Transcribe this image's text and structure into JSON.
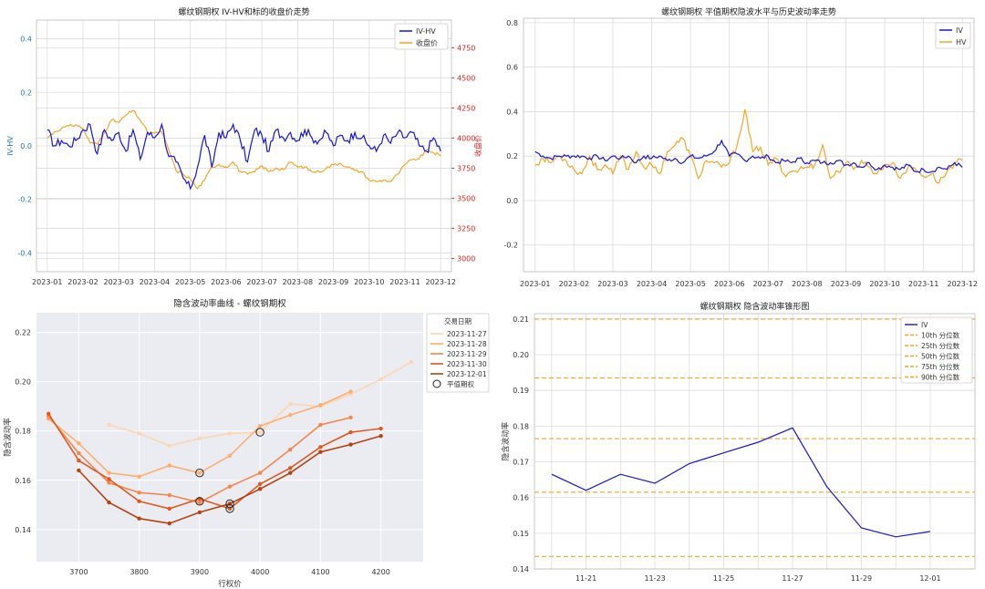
{
  "chart_data": [
    {
      "type": "line",
      "title": "螺纹钢期权 IV-HV和标的收盘价走势",
      "xlabel": "",
      "ylabel_left": "IV-HV",
      "ylabel_right": "收盘价",
      "x_ticks": [
        "2023-01",
        "2023-02",
        "2023-03",
        "2023-04",
        "2023-05",
        "2023-06",
        "2023-07",
        "2023-08",
        "2023-09",
        "2023-10",
        "2023-11",
        "2023-12"
      ],
      "x_range": [
        -0.3,
        11.3
      ],
      "ylim_left": [
        -0.47,
        0.47
      ],
      "ylim_right": [
        2890,
        4980
      ],
      "y_ticks_left": [
        "-0.4",
        "-0.2",
        "0.0",
        "0.2",
        "0.4"
      ],
      "y_ticks_right": [
        "3000",
        "3250",
        "3500",
        "3750",
        "4000",
        "4250",
        "4500",
        "4750"
      ],
      "legend": [
        "IV-HV",
        "收盘价"
      ],
      "colors": {
        "iv_hv": "#1515e0",
        "close": "#f5a623",
        "right_axis": "#e02020",
        "left_axis": "#1f77b4"
      },
      "series": [
        {
          "name": "IV-HV",
          "axis": "left",
          "x": [
            0,
            0.2,
            0.4,
            0.6,
            0.8,
            1.0,
            1.2,
            1.4,
            1.6,
            1.8,
            2.0,
            2.2,
            2.4,
            2.6,
            2.8,
            3.0,
            3.2,
            3.4,
            3.6,
            3.8,
            4.0,
            4.2,
            4.4,
            4.6,
            4.8,
            5.0,
            5.2,
            5.4,
            5.6,
            5.8,
            6.0,
            6.2,
            6.4,
            6.6,
            6.8,
            7.0,
            7.2,
            7.4,
            7.6,
            7.8,
            8.0,
            8.2,
            8.4,
            8.6,
            8.8,
            9.0,
            9.2,
            9.4,
            9.6,
            9.8,
            10.0,
            10.2,
            10.4,
            10.6,
            10.8,
            11.0
          ],
          "y": [
            0.06,
            0.0,
            0.02,
            0.0,
            0.02,
            0.06,
            0.08,
            -0.03,
            0.06,
            0.02,
            0.05,
            -0.02,
            0.06,
            -0.05,
            0.05,
            0.03,
            0.08,
            -0.04,
            -0.06,
            -0.12,
            -0.16,
            -0.08,
            0.04,
            -0.08,
            0.05,
            0.03,
            0.08,
            0.02,
            -0.06,
            0.06,
            0.04,
            -0.02,
            0.06,
            0.03,
            0.05,
            0.02,
            0.06,
            0.03,
            0.02,
            0.05,
            0.0,
            0.04,
            0.02,
            0.05,
            0.03,
            0.0,
            -0.02,
            0.04,
            0.01,
            0.05,
            0.03,
            0.05,
            0.0,
            -0.02,
            0.03,
            -0.02
          ]
        },
        {
          "name": "收盘价",
          "axis": "right",
          "x": [
            0,
            0.2,
            0.4,
            0.6,
            0.8,
            1.0,
            1.2,
            1.4,
            1.6,
            1.8,
            2.0,
            2.2,
            2.4,
            2.6,
            2.8,
            3.0,
            3.2,
            3.4,
            3.6,
            3.8,
            4.0,
            4.2,
            4.4,
            4.6,
            4.8,
            5.0,
            5.2,
            5.4,
            5.6,
            5.8,
            6.0,
            6.2,
            6.4,
            6.6,
            6.8,
            7.0,
            7.2,
            7.4,
            7.6,
            7.8,
            8.0,
            8.2,
            8.4,
            8.6,
            8.8,
            9.0,
            9.2,
            9.4,
            9.6,
            9.8,
            10.0,
            10.2,
            10.4,
            10.6,
            10.8,
            11.0
          ],
          "y": [
            4000,
            4050,
            4080,
            4100,
            4110,
            4080,
            3960,
            3950,
            4050,
            4150,
            4130,
            4190,
            4230,
            4150,
            4050,
            4040,
            4050,
            3900,
            3730,
            3700,
            3660,
            3580,
            3650,
            3760,
            3780,
            3760,
            3800,
            3720,
            3700,
            3720,
            3770,
            3720,
            3750,
            3740,
            3800,
            3760,
            3760,
            3720,
            3720,
            3750,
            3780,
            3790,
            3760,
            3730,
            3720,
            3650,
            3640,
            3650,
            3640,
            3700,
            3780,
            3820,
            3830,
            3900,
            3880,
            3850
          ]
        }
      ]
    },
    {
      "type": "line",
      "title": "螺纹钢期权 平值期权隐波水平与历史波动率走势",
      "xlabel": "",
      "ylabel": "",
      "x_ticks": [
        "2023-01",
        "2023-02",
        "2023-03",
        "2023-04",
        "2023-05",
        "2023-06",
        "2023-07",
        "2023-08",
        "2023-09",
        "2023-10",
        "2023-11",
        "2023-12"
      ],
      "x_range": [
        -0.3,
        11.3
      ],
      "ylim": [
        -0.32,
        0.82
      ],
      "y_ticks": [
        "-0.2",
        "0.0",
        "0.2",
        "0.4",
        "0.6",
        "0.8"
      ],
      "legend": [
        "IV",
        "HV"
      ],
      "colors": {
        "iv": "#1515e0",
        "hv": "#f5a623"
      },
      "series": [
        {
          "name": "IV",
          "x": [
            0,
            0.2,
            0.4,
            0.6,
            0.8,
            1.0,
            1.2,
            1.4,
            1.6,
            1.8,
            2.0,
            2.2,
            2.4,
            2.6,
            2.8,
            3.0,
            3.2,
            3.4,
            3.6,
            3.8,
            4.0,
            4.2,
            4.4,
            4.6,
            4.8,
            5.0,
            5.2,
            5.4,
            5.6,
            5.8,
            6.0,
            6.2,
            6.4,
            6.6,
            6.8,
            7.0,
            7.2,
            7.4,
            7.6,
            7.8,
            8.0,
            8.2,
            8.4,
            8.6,
            8.8,
            9.0,
            9.2,
            9.4,
            9.6,
            9.8,
            10.0,
            10.2,
            10.4,
            10.6,
            10.8,
            11.0
          ],
          "y": [
            0.22,
            0.2,
            0.19,
            0.2,
            0.2,
            0.2,
            0.2,
            0.19,
            0.2,
            0.18,
            0.2,
            0.19,
            0.2,
            0.17,
            0.2,
            0.19,
            0.2,
            0.18,
            0.19,
            0.17,
            0.2,
            0.19,
            0.2,
            0.22,
            0.27,
            0.2,
            0.21,
            0.18,
            0.2,
            0.19,
            0.2,
            0.17,
            0.18,
            0.17,
            0.19,
            0.17,
            0.18,
            0.17,
            0.17,
            0.18,
            0.16,
            0.17,
            0.15,
            0.17,
            0.14,
            0.16,
            0.15,
            0.14,
            0.16,
            0.13,
            0.14,
            0.13,
            0.15,
            0.14,
            0.17,
            0.15
          ]
        },
        {
          "name": "HV",
          "x": [
            0,
            0.2,
            0.4,
            0.6,
            0.8,
            1.0,
            1.2,
            1.4,
            1.6,
            1.8,
            2.0,
            2.2,
            2.4,
            2.6,
            2.8,
            3.0,
            3.2,
            3.4,
            3.6,
            3.8,
            4.0,
            4.2,
            4.4,
            4.6,
            4.8,
            5.0,
            5.2,
            5.4,
            5.6,
            5.8,
            6.0,
            6.2,
            6.4,
            6.6,
            6.8,
            7.0,
            7.2,
            7.4,
            7.6,
            7.8,
            8.0,
            8.2,
            8.4,
            8.6,
            8.8,
            9.0,
            9.2,
            9.4,
            9.6,
            9.8,
            10.0,
            10.2,
            10.4,
            10.6,
            10.8,
            11.0
          ],
          "y": [
            0.16,
            0.19,
            0.17,
            0.2,
            0.18,
            0.14,
            0.12,
            0.2,
            0.14,
            0.16,
            0.12,
            0.2,
            0.14,
            0.22,
            0.15,
            0.16,
            0.12,
            0.22,
            0.25,
            0.28,
            0.2,
            0.1,
            0.18,
            0.17,
            0.15,
            0.17,
            0.25,
            0.41,
            0.22,
            0.24,
            0.16,
            0.19,
            0.12,
            0.13,
            0.14,
            0.15,
            0.16,
            0.25,
            0.1,
            0.13,
            0.17,
            0.14,
            0.18,
            0.15,
            0.12,
            0.16,
            0.17,
            0.1,
            0.15,
            0.14,
            0.11,
            0.12,
            0.08,
            0.13,
            0.17,
            0.18
          ]
        }
      ]
    },
    {
      "type": "line",
      "title": "隐含波动率曲线 - 螺纹钢期权",
      "xlabel": "行权价",
      "ylabel": "隐含波动率",
      "xlim": [
        3630,
        4270
      ],
      "ylim": [
        0.127,
        0.228
      ],
      "x_ticks": [
        "3700",
        "3800",
        "3900",
        "4000",
        "4100",
        "4200"
      ],
      "y_ticks": [
        "0.14",
        "0.16",
        "0.18",
        "0.20",
        "0.22"
      ],
      "legend_title": "交易日期",
      "legend": [
        "2023-11-27",
        "2023-11-28",
        "2023-11-29",
        "2023-11-30",
        "2023-12-01"
      ],
      "atm_label": "平值期权",
      "series": [
        {
          "name": "2023-11-27",
          "color": "#fdd5b1",
          "x": [
            3750,
            3800,
            3850,
            3900,
            3950,
            4000,
            4050,
            4100,
            4150,
            4200,
            4250
          ],
          "y": [
            0.1825,
            0.179,
            0.174,
            0.177,
            0.179,
            0.1795,
            0.191,
            0.19,
            0.195,
            0.201,
            0.208
          ]
        },
        {
          "name": "2023-11-28",
          "color": "#fdae6b",
          "x": [
            3650,
            3700,
            3750,
            3800,
            3850,
            3900,
            3950,
            4000,
            4050,
            4100,
            4150
          ],
          "y": [
            0.185,
            0.175,
            0.163,
            0.1615,
            0.166,
            0.163,
            0.17,
            0.182,
            0.1865,
            0.1905,
            0.196
          ]
        },
        {
          "name": "2023-11-29",
          "color": "#f4874a",
          "x": [
            3650,
            3700,
            3750,
            3800,
            3850,
            3900,
            3950,
            4000,
            4050,
            4100,
            4150
          ],
          "y": [
            0.186,
            0.171,
            0.159,
            0.155,
            0.154,
            0.151,
            0.1575,
            0.163,
            0.1725,
            0.1825,
            0.1855
          ]
        },
        {
          "name": "2023-11-30",
          "color": "#de5a1f",
          "x": [
            3650,
            3700,
            3750,
            3800,
            3850,
            3900,
            3950,
            4000,
            4050,
            4100,
            4150,
            4200
          ],
          "y": [
            0.187,
            0.168,
            0.1605,
            0.1515,
            0.1485,
            0.1525,
            0.1485,
            0.1585,
            0.165,
            0.1735,
            0.1795,
            0.181
          ]
        },
        {
          "name": "2023-12-01",
          "color": "#b3430f",
          "x": [
            3700,
            3750,
            3800,
            3850,
            3900,
            3950,
            4000,
            4050,
            4100,
            4150,
            4200
          ],
          "y": [
            0.164,
            0.151,
            0.1445,
            0.1425,
            0.147,
            0.1505,
            0.1565,
            0.163,
            0.1715,
            0.1745,
            0.178
          ]
        }
      ],
      "atm_points": [
        {
          "x": 4000,
          "y": 0.1795
        },
        {
          "x": 3900,
          "y": 0.163
        },
        {
          "x": 3900,
          "y": 0.1515
        },
        {
          "x": 3950,
          "y": 0.1485
        },
        {
          "x": 3950,
          "y": 0.1505
        }
      ]
    },
    {
      "type": "line",
      "title": "螺纹钢期权 隐含波动率锥形图",
      "xlabel": "",
      "ylabel": "隐含波动率",
      "xlim": [
        -0.5,
        12.3
      ],
      "ylim": [
        0.14,
        0.2115
      ],
      "x_ticks": [
        {
          "x": 1,
          "label": "11-21"
        },
        {
          "x": 3,
          "label": "11-23"
        },
        {
          "x": 5,
          "label": "11-25"
        },
        {
          "x": 7,
          "label": "11-27"
        },
        {
          "x": 9,
          "label": "11-29"
        },
        {
          "x": 11,
          "label": "12-01"
        }
      ],
      "y_ticks": [
        "0.14",
        "0.15",
        "0.16",
        "0.17",
        "0.18",
        "0.19",
        "0.20",
        "0.21"
      ],
      "legend": [
        "IV",
        "10th 分位数",
        "25th 分位数",
        "50th 分位数",
        "75th 分位数",
        "90th 分位数"
      ],
      "colors": {
        "iv": "#1515e0",
        "percentile": "#f5a623"
      },
      "series": [
        {
          "name": "IV",
          "x": [
            0,
            1,
            2,
            3,
            4,
            5,
            6,
            7,
            8,
            9,
            10,
            11
          ],
          "y": [
            0.1665,
            0.162,
            0.1665,
            0.164,
            0.1695,
            0.1725,
            0.1755,
            0.1795,
            0.163,
            0.1515,
            0.149,
            0.1505
          ]
        }
      ],
      "percentiles": [
        {
          "name": "10th 分位数",
          "value": 0.1435
        },
        {
          "name": "25th 分位数",
          "value": 0.1615
        },
        {
          "name": "50th 分位数",
          "value": 0.1765
        },
        {
          "name": "75th 分位数",
          "value": 0.1935
        },
        {
          "name": "90th 分位数",
          "value": 0.21
        }
      ]
    }
  ]
}
